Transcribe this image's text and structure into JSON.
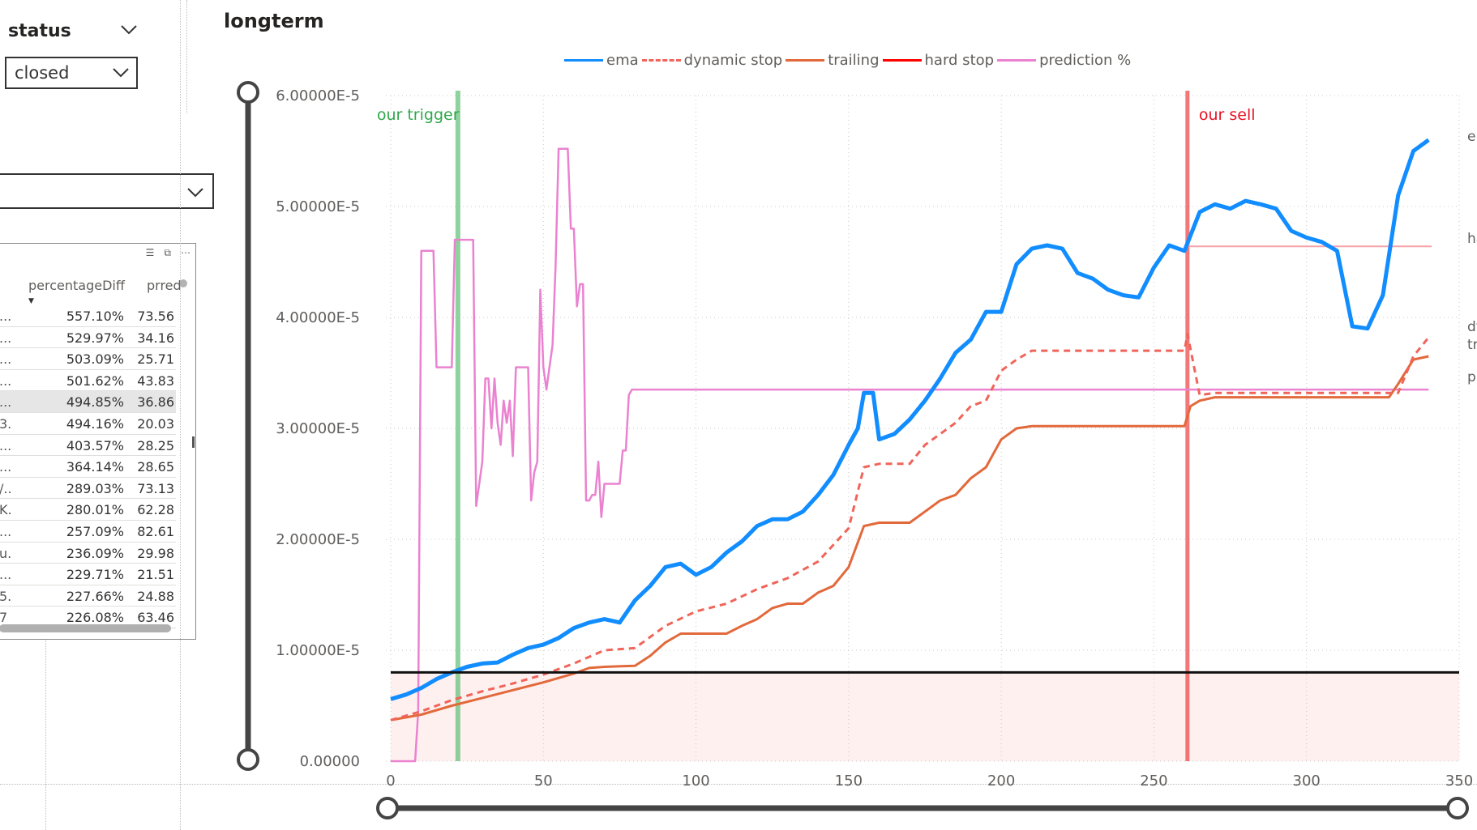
{
  "status_slicer": {
    "title": "status",
    "selected": "closed"
  },
  "second_dropdown": {
    "value": ""
  },
  "table": {
    "columns": [
      "percentageDiff",
      "prred"
    ],
    "rows": [
      {
        "c0": "...",
        "diff": "557.10%",
        "prred": "73.56"
      },
      {
        "c0": "...",
        "diff": "529.97%",
        "prred": "34.16"
      },
      {
        "c0": "...",
        "diff": "503.09%",
        "prred": "25.71"
      },
      {
        "c0": "...",
        "diff": "501.62%",
        "prred": "43.83"
      },
      {
        "c0": "...",
        "diff": "494.85%",
        "prred": "36.86"
      },
      {
        "c0": "3...",
        "diff": "494.16%",
        "prred": "20.03"
      },
      {
        "c0": "...",
        "diff": "403.57%",
        "prred": "28.25"
      },
      {
        "c0": "...",
        "diff": "364.14%",
        "prred": "28.65"
      },
      {
        "c0": "/...",
        "diff": "289.03%",
        "prred": "73.13"
      },
      {
        "c0": "K...",
        "diff": "280.01%",
        "prred": "62.28"
      },
      {
        "c0": "...",
        "diff": "257.09%",
        "prred": "82.61"
      },
      {
        "c0": "u...",
        "diff": "236.09%",
        "prred": "29.98"
      },
      {
        "c0": "...",
        "diff": "229.71%",
        "prred": "21.51"
      },
      {
        "c0": "5...",
        "diff": "227.66%",
        "prred": "24.88"
      },
      {
        "c0": "7",
        "diff": "226.08%",
        "prred": "63.46"
      }
    ],
    "selected_row": 4
  },
  "chart_data": {
    "type": "line",
    "title": "longterm",
    "xlim": [
      0,
      350
    ],
    "ylim": [
      0,
      6e-05
    ],
    "x_ticks": [
      "0",
      "50",
      "100",
      "150",
      "200",
      "250",
      "300",
      "350"
    ],
    "y_ticks": [
      "0.00000",
      "1.00000E-5",
      "2.00000E-5",
      "3.00000E-5",
      "4.00000E-5",
      "5.00000E-5",
      "6.00000E-5"
    ],
    "legend": [
      "ema",
      "dynamic stop",
      "trailing",
      "hard stop",
      "prediction %"
    ],
    "colors": {
      "ema": "#118dff",
      "dynamic stop": "#f0645a",
      "trailing": "#e2693b",
      "hard stop": "#ff0000",
      "prediction %": "#ea82d0",
      "trigger": "#5fbf75",
      "sell": "#ef3e3e"
    },
    "annotations": [
      {
        "text": "our trigger",
        "x": 22
      },
      {
        "text": "our sell",
        "x": 261
      }
    ],
    "right_labels": [
      "ema",
      "hard stop",
      "dynamic stop",
      "trailing",
      "prediction %"
    ],
    "reference_line_y": 8e-06,
    "series": [
      {
        "name": "ema",
        "x": [
          0,
          5,
          10,
          15,
          20,
          25,
          30,
          35,
          40,
          45,
          50,
          55,
          60,
          65,
          70,
          75,
          80,
          85,
          90,
          95,
          100,
          105,
          110,
          115,
          120,
          125,
          130,
          135,
          140,
          145,
          150,
          153,
          155,
          158,
          160,
          165,
          170,
          175,
          180,
          185,
          190,
          195,
          200,
          205,
          210,
          215,
          220,
          225,
          230,
          235,
          240,
          245,
          250,
          255,
          260,
          265,
          270,
          275,
          280,
          285,
          290,
          295,
          300,
          305,
          310,
          315,
          320,
          325,
          330,
          335,
          340
        ],
        "y": [
          5.6e-06,
          6e-06,
          6.6e-06,
          7.4e-06,
          8e-06,
          8.5e-06,
          8.8e-06,
          8.9e-06,
          9.6e-06,
          1.02e-05,
          1.05e-05,
          1.11e-05,
          1.2e-05,
          1.25e-05,
          1.28e-05,
          1.25e-05,
          1.45e-05,
          1.58e-05,
          1.75e-05,
          1.78e-05,
          1.68e-05,
          1.75e-05,
          1.88e-05,
          1.98e-05,
          2.12e-05,
          2.18e-05,
          2.18e-05,
          2.25e-05,
          2.4e-05,
          2.58e-05,
          2.85e-05,
          3e-05,
          3.32e-05,
          3.32e-05,
          2.9e-05,
          2.95e-05,
          3.08e-05,
          3.25e-05,
          3.45e-05,
          3.68e-05,
          3.8e-05,
          4.05e-05,
          4.05e-05,
          4.48e-05,
          4.62e-05,
          4.65e-05,
          4.62e-05,
          4.4e-05,
          4.35e-05,
          4.25e-05,
          4.2e-05,
          4.18e-05,
          4.45e-05,
          4.65e-05,
          4.6e-05,
          4.95e-05,
          5.02e-05,
          4.98e-05,
          5.05e-05,
          5.02e-05,
          4.98e-05,
          4.78e-05,
          4.72e-05,
          4.68e-05,
          4.6e-05,
          3.92e-05,
          3.9e-05,
          4.2e-05,
          5.1e-05,
          5.5e-05,
          5.6e-05
        ]
      },
      {
        "name": "dynamic stop",
        "x": [
          0,
          10,
          20,
          30,
          40,
          50,
          60,
          70,
          80,
          90,
          100,
          110,
          120,
          130,
          140,
          150,
          155,
          160,
          165,
          170,
          175,
          180,
          185,
          190,
          195,
          200,
          205,
          210,
          220,
          230,
          240,
          250,
          260,
          261,
          265,
          270,
          280,
          300,
          320,
          330,
          335,
          340
        ],
        "y": [
          3.7e-06,
          4.5e-06,
          5.5e-06,
          6.3e-06,
          7e-06,
          7.8e-06,
          8.8e-06,
          1e-05,
          1.02e-05,
          1.22e-05,
          1.35e-05,
          1.42e-05,
          1.55e-05,
          1.65e-05,
          1.8e-05,
          2.1e-05,
          2.65e-05,
          2.68e-05,
          2.68e-05,
          2.68e-05,
          2.85e-05,
          2.95e-05,
          3.05e-05,
          3.2e-05,
          3.25e-05,
          3.52e-05,
          3.62e-05,
          3.7e-05,
          3.7e-05,
          3.7e-05,
          3.7e-05,
          3.7e-05,
          3.7e-05,
          3.85e-05,
          3.3e-05,
          3.32e-05,
          3.32e-05,
          3.32e-05,
          3.32e-05,
          3.32e-05,
          3.65e-05,
          3.82e-05
        ]
      },
      {
        "name": "trailing",
        "x": [
          0,
          10,
          20,
          30,
          40,
          50,
          60,
          65,
          70,
          80,
          85,
          90,
          95,
          100,
          110,
          115,
          120,
          125,
          130,
          135,
          140,
          145,
          150,
          155,
          160,
          165,
          170,
          175,
          180,
          185,
          190,
          195,
          200,
          205,
          210,
          215,
          220,
          230,
          250,
          260,
          262,
          265,
          270,
          280,
          300,
          320,
          327,
          330,
          335,
          340
        ],
        "y": [
          3.7e-06,
          4.2e-06,
          5e-06,
          5.7e-06,
          6.4e-06,
          7.1e-06,
          7.9e-06,
          8.4e-06,
          8.5e-06,
          8.6e-06,
          9.5e-06,
          1.07e-05,
          1.15e-05,
          1.15e-05,
          1.15e-05,
          1.22e-05,
          1.28e-05,
          1.38e-05,
          1.42e-05,
          1.42e-05,
          1.52e-05,
          1.58e-05,
          1.75e-05,
          2.12e-05,
          2.15e-05,
          2.15e-05,
          2.15e-05,
          2.25e-05,
          2.35e-05,
          2.4e-05,
          2.55e-05,
          2.65e-05,
          2.9e-05,
          3e-05,
          3.02e-05,
          3.02e-05,
          3.02e-05,
          3.02e-05,
          3.02e-05,
          3.02e-05,
          3.2e-05,
          3.25e-05,
          3.28e-05,
          3.28e-05,
          3.28e-05,
          3.28e-05,
          3.28e-05,
          3.4e-05,
          3.62e-05,
          3.65e-05
        ]
      },
      {
        "name": "hard stop",
        "x": [
          261,
          341
        ],
        "y": [
          4.64e-05,
          4.64e-05
        ]
      },
      {
        "name": "prediction %",
        "x": [
          0,
          8,
          9,
          10,
          14,
          15,
          16,
          20,
          21,
          22,
          27,
          28,
          30,
          31,
          32,
          33,
          34,
          35,
          36,
          37,
          38,
          39,
          40,
          41,
          42,
          43,
          44,
          45,
          46,
          47,
          48,
          49,
          50,
          51,
          52,
          53,
          54,
          55,
          56,
          57,
          58,
          59,
          60,
          61,
          62,
          63,
          64,
          65,
          66,
          67,
          68,
          69,
          70,
          71,
          72,
          73,
          74,
          75,
          76,
          77,
          78,
          79,
          80,
          81,
          82,
          340
        ],
        "y": [
          0,
          0,
          4.5e-06,
          4.6e-05,
          4.6e-05,
          3.55e-05,
          3.55e-05,
          3.55e-05,
          4.7e-05,
          4.7e-05,
          4.7e-05,
          2.3e-05,
          2.7e-05,
          3.45e-05,
          3.45e-05,
          3e-05,
          3.45e-05,
          3.05e-05,
          2.85e-05,
          3.25e-05,
          3.05e-05,
          3.25e-05,
          2.75e-05,
          3.55e-05,
          3.55e-05,
          3.55e-05,
          3.55e-05,
          3.55e-05,
          2.35e-05,
          2.6e-05,
          2.7e-05,
          4.25e-05,
          3.55e-05,
          3.35e-05,
          3.55e-05,
          3.75e-05,
          4.45e-05,
          5.52e-05,
          5.52e-05,
          5.52e-05,
          5.52e-05,
          4.8e-05,
          4.8e-05,
          4.1e-05,
          4.3e-05,
          4.3e-05,
          2.35e-05,
          2.35e-05,
          2.4e-05,
          2.4e-05,
          2.7e-05,
          2.2e-05,
          2.5e-05,
          2.5e-05,
          2.5e-05,
          2.5e-05,
          2.5e-05,
          2.5e-05,
          2.8e-05,
          2.8e-05,
          3.3e-05,
          3.35e-05,
          3.35e-05,
          3.35e-05,
          3.35e-05,
          3.35e-05
        ]
      }
    ]
  }
}
